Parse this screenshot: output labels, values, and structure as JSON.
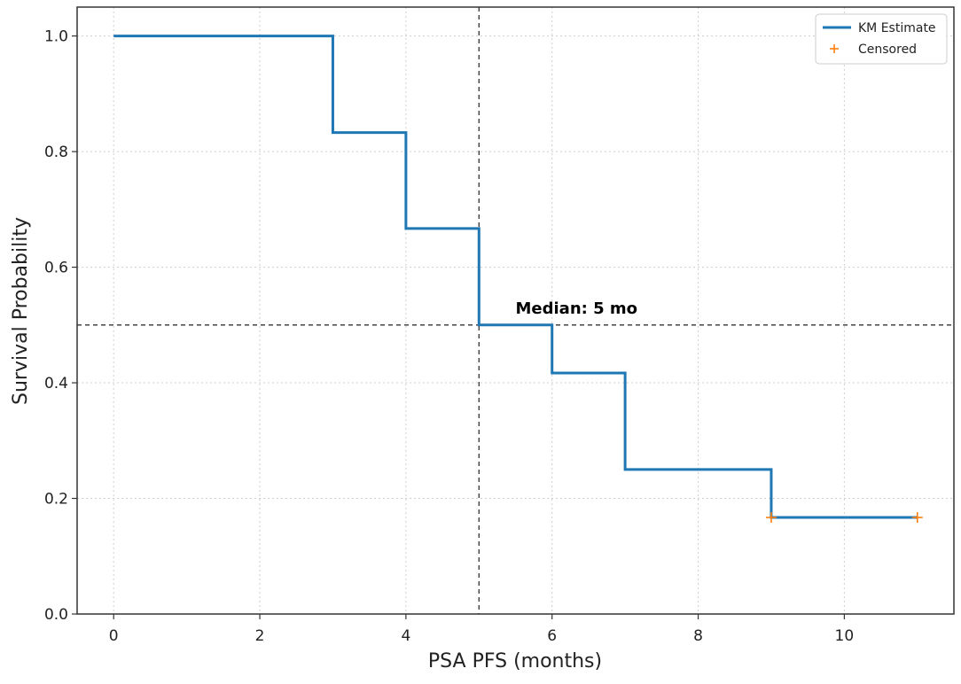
{
  "chart_data": {
    "type": "line",
    "step": "post",
    "xlabel": "PSA PFS (months)",
    "ylabel": "Survival Probability",
    "xlim": [
      -0.5,
      11.5
    ],
    "ylim": [
      0.0,
      1.05
    ],
    "xticks": [
      0,
      2,
      4,
      6,
      8,
      10
    ],
    "xtick_labels": [
      "0",
      "2",
      "4",
      "6",
      "8",
      "10"
    ],
    "yticks": [
      0.0,
      0.2,
      0.4,
      0.6,
      0.8,
      1.0
    ],
    "ytick_labels": [
      "0.0",
      "0.2",
      "0.4",
      "0.6",
      "0.8",
      "1.0"
    ],
    "grid": true,
    "grid_style": "dotted",
    "legend_position": "top-right",
    "series": [
      {
        "name": "KM Estimate",
        "color": "#1f77b4",
        "x": [
          0,
          3,
          4,
          5,
          6,
          7,
          9,
          11
        ],
        "y": [
          1.0,
          0.833,
          0.667,
          0.5,
          0.417,
          0.25,
          0.167,
          0.167
        ]
      },
      {
        "name": "Censored",
        "color": "#ff7f0e",
        "marker": "plus",
        "x": [
          9,
          11
        ],
        "y": [
          0.167,
          0.167
        ]
      }
    ],
    "reference_lines": [
      {
        "orientation": "horizontal",
        "value": 0.5,
        "style": "dashed",
        "color": "#333333"
      },
      {
        "orientation": "vertical",
        "value": 5,
        "style": "dashed",
        "color": "#333333"
      }
    ],
    "annotations": [
      {
        "text": "Median: 5 mo",
        "x": 5.5,
        "y": 0.52
      }
    ]
  }
}
